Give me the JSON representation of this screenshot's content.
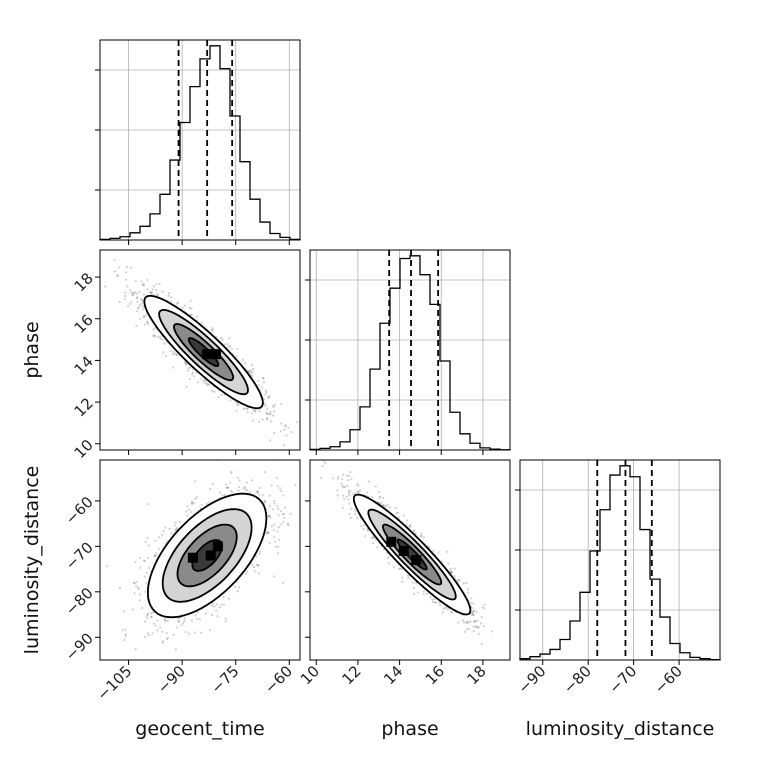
{
  "chart_data": {
    "type": "corner",
    "parameters": [
      "geocent_time",
      "phase",
      "luminosity_distance"
    ],
    "ranges": {
      "geocent_time": [
        -113,
        -57
      ],
      "phase": [
        9.7,
        19.3
      ],
      "luminosity_distance": [
        -95,
        -51
      ]
    },
    "ticks": {
      "geocent_time": {
        "values": [
          -105,
          -90,
          -75,
          -60
        ],
        "labels": [
          "−105",
          "−90",
          "−75",
          "−60"
        ]
      },
      "phase": {
        "values": [
          10,
          12,
          14,
          16,
          18
        ],
        "labels": [
          "10",
          "12",
          "14",
          "16",
          "18"
        ]
      },
      "luminosity_distance": {
        "values": [
          -90,
          -80,
          -70,
          -60
        ],
        "labels": [
          "−90",
          "−80",
          "−70",
          "−60"
        ]
      }
    },
    "marginals": {
      "geocent_time": {
        "bin_edges": [
          -113,
          -110.2,
          -107.4,
          -104.6,
          -101.8,
          -99,
          -96.2,
          -93.4,
          -90.6,
          -87.8,
          -85,
          -82.2,
          -79.4,
          -76.6,
          -73.8,
          -71,
          -68.2,
          -65.4,
          -62.6,
          -59.8,
          -57
        ],
        "counts": [
          2,
          5,
          10,
          22,
          42,
          80,
          140,
          245,
          360,
          470,
          555,
          595,
          525,
          380,
          240,
          125,
          55,
          20,
          8,
          2
        ],
        "quantiles": [
          -91,
          -83,
          -76
        ]
      },
      "phase": {
        "bin_edges": [
          9.7,
          10.18,
          10.66,
          11.14,
          11.62,
          12.1,
          12.58,
          13.06,
          13.54,
          14.02,
          14.5,
          14.98,
          15.46,
          15.94,
          16.42,
          16.9,
          17.38,
          17.86,
          18.34,
          18.82,
          19.3
        ],
        "counts": [
          2,
          6,
          12,
          30,
          75,
          160,
          300,
          470,
          600,
          710,
          720,
          650,
          540,
          330,
          140,
          60,
          25,
          8,
          3,
          1
        ],
        "quantiles": [
          13.5,
          14.55,
          15.85
        ]
      },
      "luminosity_distance": {
        "bin_edges": [
          -95,
          -92.8,
          -90.6,
          -88.4,
          -86.2,
          -84,
          -81.8,
          -79.6,
          -77.4,
          -75.2,
          -73,
          -70.8,
          -68.6,
          -66.4,
          -64.2,
          -62,
          -59.8,
          -57.6,
          -55.4,
          -53.2,
          -51
        ],
        "counts": [
          4,
          10,
          18,
          32,
          62,
          118,
          205,
          330,
          455,
          560,
          588,
          555,
          395,
          245,
          130,
          50,
          22,
          8,
          4,
          1
        ],
        "quantiles": [
          -78,
          -71.8,
          -66
        ]
      }
    },
    "joint": [
      {
        "x": "geocent_time",
        "y": "phase",
        "mean": [
          -84,
          14.4
        ],
        "std": [
          8.3,
          1.35
        ],
        "rho": -0.9,
        "peak_cells": [
          [
            -83,
            14.3
          ],
          [
            -80.5,
            14.3
          ]
        ]
      },
      {
        "x": "geocent_time",
        "y": "luminosity_distance",
        "mean": [
          -83,
          -72
        ],
        "std": [
          8.3,
          6.8
        ],
        "rho": 0.6,
        "peak_cells": [
          [
            -87,
            -72.5
          ],
          [
            -82,
            -72
          ],
          [
            -80,
            -70
          ]
        ]
      },
      {
        "x": "phase",
        "y": "luminosity_distance",
        "mean": [
          14.6,
          -71.8
        ],
        "std": [
          1.4,
          6.6
        ],
        "rho": -0.93,
        "peak_cells": [
          [
            14.2,
            -71
          ],
          [
            14.8,
            -73
          ],
          [
            13.6,
            -69
          ]
        ]
      }
    ],
    "grid": true,
    "quantile_lines": "dashed"
  }
}
